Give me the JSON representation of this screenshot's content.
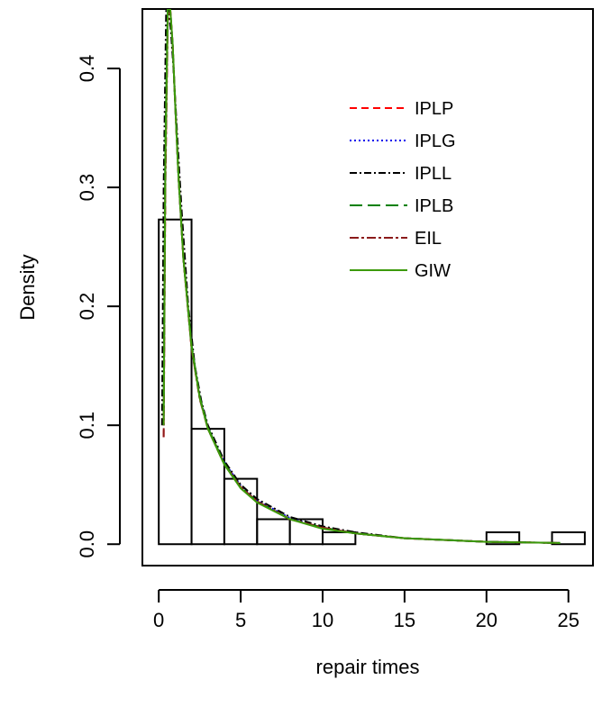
{
  "chart_data": {
    "type": "line",
    "title": "",
    "xlabel": "repair times",
    "ylabel": "Density",
    "xlim": [
      -1,
      26.5
    ],
    "ylim": [
      -0.018,
      0.45
    ],
    "grid": false,
    "legend_position": "top-right",
    "x_ticks": [
      {
        "value": 0,
        "label": "0"
      },
      {
        "value": 5,
        "label": "5"
      },
      {
        "value": 10,
        "label": "10"
      },
      {
        "value": 15,
        "label": "15"
      },
      {
        "value": 20,
        "label": "20"
      },
      {
        "value": 25,
        "label": "25"
      }
    ],
    "y_ticks": [
      {
        "value": 0.0,
        "label": "0.0"
      },
      {
        "value": 0.1,
        "label": "0.1"
      },
      {
        "value": 0.2,
        "label": "0.2"
      },
      {
        "value": 0.3,
        "label": "0.3"
      },
      {
        "value": 0.4,
        "label": "0.4"
      }
    ],
    "histogram": {
      "name": "",
      "color": "#000000",
      "bin_edges": [
        0,
        2,
        4,
        6,
        8,
        10,
        12,
        14,
        16,
        18,
        20,
        22,
        24,
        26
      ],
      "densities": [
        0.273,
        0.097,
        0.055,
        0.021,
        0.021,
        0.01,
        0.0,
        0.0,
        0.0,
        0.0,
        0.01,
        0.0,
        0.01
      ]
    },
    "series": [
      {
        "name": "IPLP",
        "color": "#ff0000",
        "dash": "8,5",
        "x": [
          0.3,
          0.4,
          0.55,
          0.7,
          0.85,
          1.0,
          1.2,
          1.5,
          2.0,
          2.5,
          3.0,
          4.0,
          5.0,
          6.0,
          8.0,
          10.0,
          12.0,
          15.0,
          20.0,
          24.5
        ],
        "y": [
          0.09,
          0.31,
          0.45,
          0.45,
          0.42,
          0.37,
          0.31,
          0.24,
          0.165,
          0.123,
          0.097,
          0.068,
          0.048,
          0.036,
          0.021,
          0.014,
          0.009,
          0.005,
          0.002,
          0.001
        ]
      },
      {
        "name": "IPLG",
        "color": "#0000ee",
        "dash": "2,3",
        "x": [
          0.3,
          0.4,
          0.55,
          0.7,
          0.85,
          1.0,
          1.2,
          1.5,
          2.0,
          2.5,
          3.0,
          4.0,
          5.0,
          6.0,
          8.0,
          10.0,
          12.0,
          15.0,
          20.0,
          24.5
        ],
        "y": [
          0.1,
          0.33,
          0.45,
          0.45,
          0.42,
          0.37,
          0.31,
          0.24,
          0.167,
          0.124,
          0.098,
          0.069,
          0.049,
          0.037,
          0.022,
          0.014,
          0.009,
          0.005,
          0.002,
          0.001
        ]
      },
      {
        "name": "IPLL",
        "color": "#000000",
        "dash": "8,3,2,3",
        "x": [
          0.2,
          0.3,
          0.45,
          0.6,
          0.75,
          0.9,
          1.1,
          1.4,
          1.8,
          2.2,
          2.6,
          3.0,
          4.0,
          5.0,
          6.0,
          8.0,
          10.0,
          12.0,
          15.0,
          20.0,
          24.5
        ],
        "y": [
          0.1,
          0.3,
          0.45,
          0.45,
          0.43,
          0.4,
          0.35,
          0.28,
          0.2,
          0.15,
          0.12,
          0.1,
          0.07,
          0.05,
          0.038,
          0.023,
          0.015,
          0.01,
          0.005,
          0.002,
          0.001
        ]
      },
      {
        "name": "IPLB",
        "color": "#008000",
        "dash": "14,6",
        "x": [
          0.3,
          0.4,
          0.55,
          0.7,
          0.85,
          1.0,
          1.2,
          1.5,
          2.0,
          2.5,
          3.0,
          4.0,
          5.0,
          6.0,
          8.0,
          10.0,
          12.0,
          15.0,
          20.0,
          24.5
        ],
        "y": [
          0.11,
          0.34,
          0.45,
          0.45,
          0.42,
          0.37,
          0.31,
          0.24,
          0.168,
          0.124,
          0.098,
          0.068,
          0.048,
          0.036,
          0.021,
          0.014,
          0.009,
          0.005,
          0.002,
          0.001
        ]
      },
      {
        "name": "EIL",
        "color": "#8b1a1a",
        "dash": "10,3,3,3",
        "x": [
          0.3,
          0.4,
          0.55,
          0.7,
          0.85,
          1.0,
          1.2,
          1.5,
          2.0,
          2.5,
          3.0,
          4.0,
          5.0,
          6.0,
          8.0,
          10.0,
          12.0,
          15.0,
          20.0,
          24.5
        ],
        "y": [
          0.09,
          0.3,
          0.44,
          0.45,
          0.42,
          0.37,
          0.31,
          0.24,
          0.165,
          0.122,
          0.097,
          0.067,
          0.048,
          0.036,
          0.021,
          0.014,
          0.009,
          0.005,
          0.002,
          0.001
        ]
      },
      {
        "name": "GIW",
        "color": "#3c9a0a",
        "dash": "",
        "x": [
          0.3,
          0.4,
          0.55,
          0.7,
          0.85,
          1.0,
          1.2,
          1.5,
          2.0,
          2.5,
          3.0,
          4.0,
          5.0,
          6.0,
          8.0,
          10.0,
          12.0,
          15.0,
          20.0,
          24.5
        ],
        "y": [
          0.1,
          0.32,
          0.45,
          0.45,
          0.42,
          0.37,
          0.31,
          0.24,
          0.166,
          0.123,
          0.097,
          0.067,
          0.047,
          0.035,
          0.021,
          0.013,
          0.009,
          0.005,
          0.002,
          0.001
        ]
      }
    ]
  }
}
